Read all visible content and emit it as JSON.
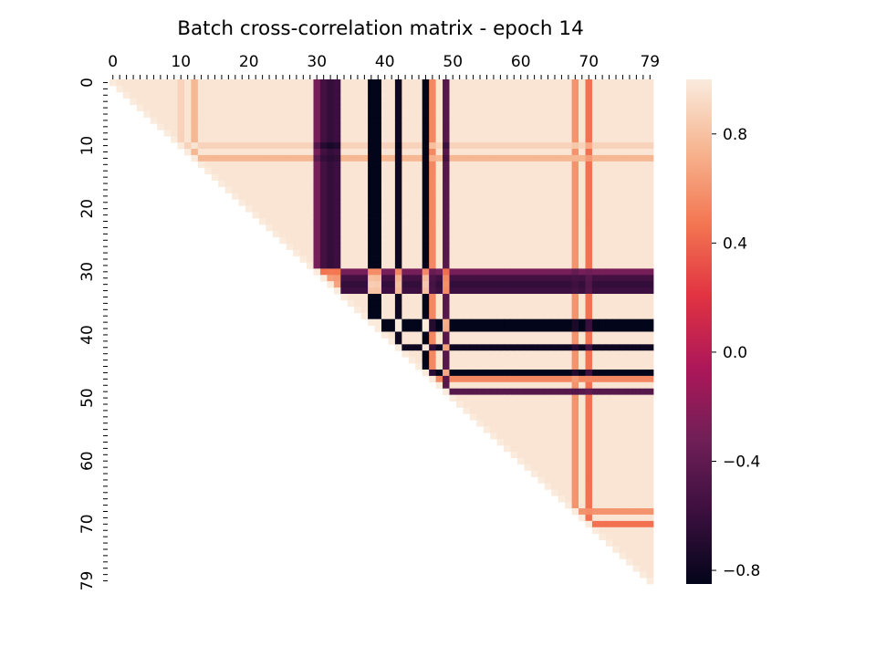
{
  "chart_data": {
    "type": "heatmap",
    "title": "Batch cross-correlation matrix - epoch 14",
    "xlabel": "",
    "ylabel": "",
    "size": 80,
    "mask": "lower-triangle",
    "x_tick_labels": [
      "0",
      "10",
      "20",
      "30",
      "40",
      "50",
      "60",
      "70",
      "79"
    ],
    "x_tick_values": [
      0,
      10,
      20,
      30,
      40,
      50,
      60,
      70,
      79
    ],
    "y_tick_labels": [
      "0",
      "10",
      "20",
      "30",
      "40",
      "50",
      "60",
      "70",
      "79"
    ],
    "y_tick_values": [
      0,
      10,
      20,
      30,
      40,
      50,
      60,
      70,
      79
    ],
    "colorbar": {
      "tick_labels": [
        "0.8",
        "0.4",
        "0.0",
        "−0.4",
        "−0.8"
      ],
      "tick_values": [
        0.8,
        0.4,
        0.0,
        -0.4,
        -0.8
      ],
      "vmin": -0.85,
      "vmax": 1.0,
      "colormap": "rocket",
      "colormap_stops": [
        "#03051a",
        "#3b0f3f",
        "#701f57",
        "#ad1759",
        "#e13342",
        "#f37651",
        "#f6b48f",
        "#faebdd"
      ]
    },
    "default_value": 0.97,
    "cell_overrides": [
      {
        "index": 10,
        "value": 0.88
      },
      {
        "index": 12,
        "value": 0.75
      },
      {
        "index": 30,
        "value": -0.3
      },
      {
        "index": 31,
        "value": -0.55
      },
      {
        "index": 32,
        "value": -0.62
      },
      {
        "index": 33,
        "value": -0.58
      },
      {
        "index": 38,
        "value": -0.9
      },
      {
        "index": 39,
        "value": -0.88
      },
      {
        "index": 42,
        "value": -0.8
      },
      {
        "index": 46,
        "value": -0.85
      },
      {
        "index": 47,
        "value": 0.55
      },
      {
        "index": 49,
        "value": -0.45
      },
      {
        "index": 68,
        "value": 0.6
      },
      {
        "index": 70,
        "value": 0.45
      }
    ]
  }
}
